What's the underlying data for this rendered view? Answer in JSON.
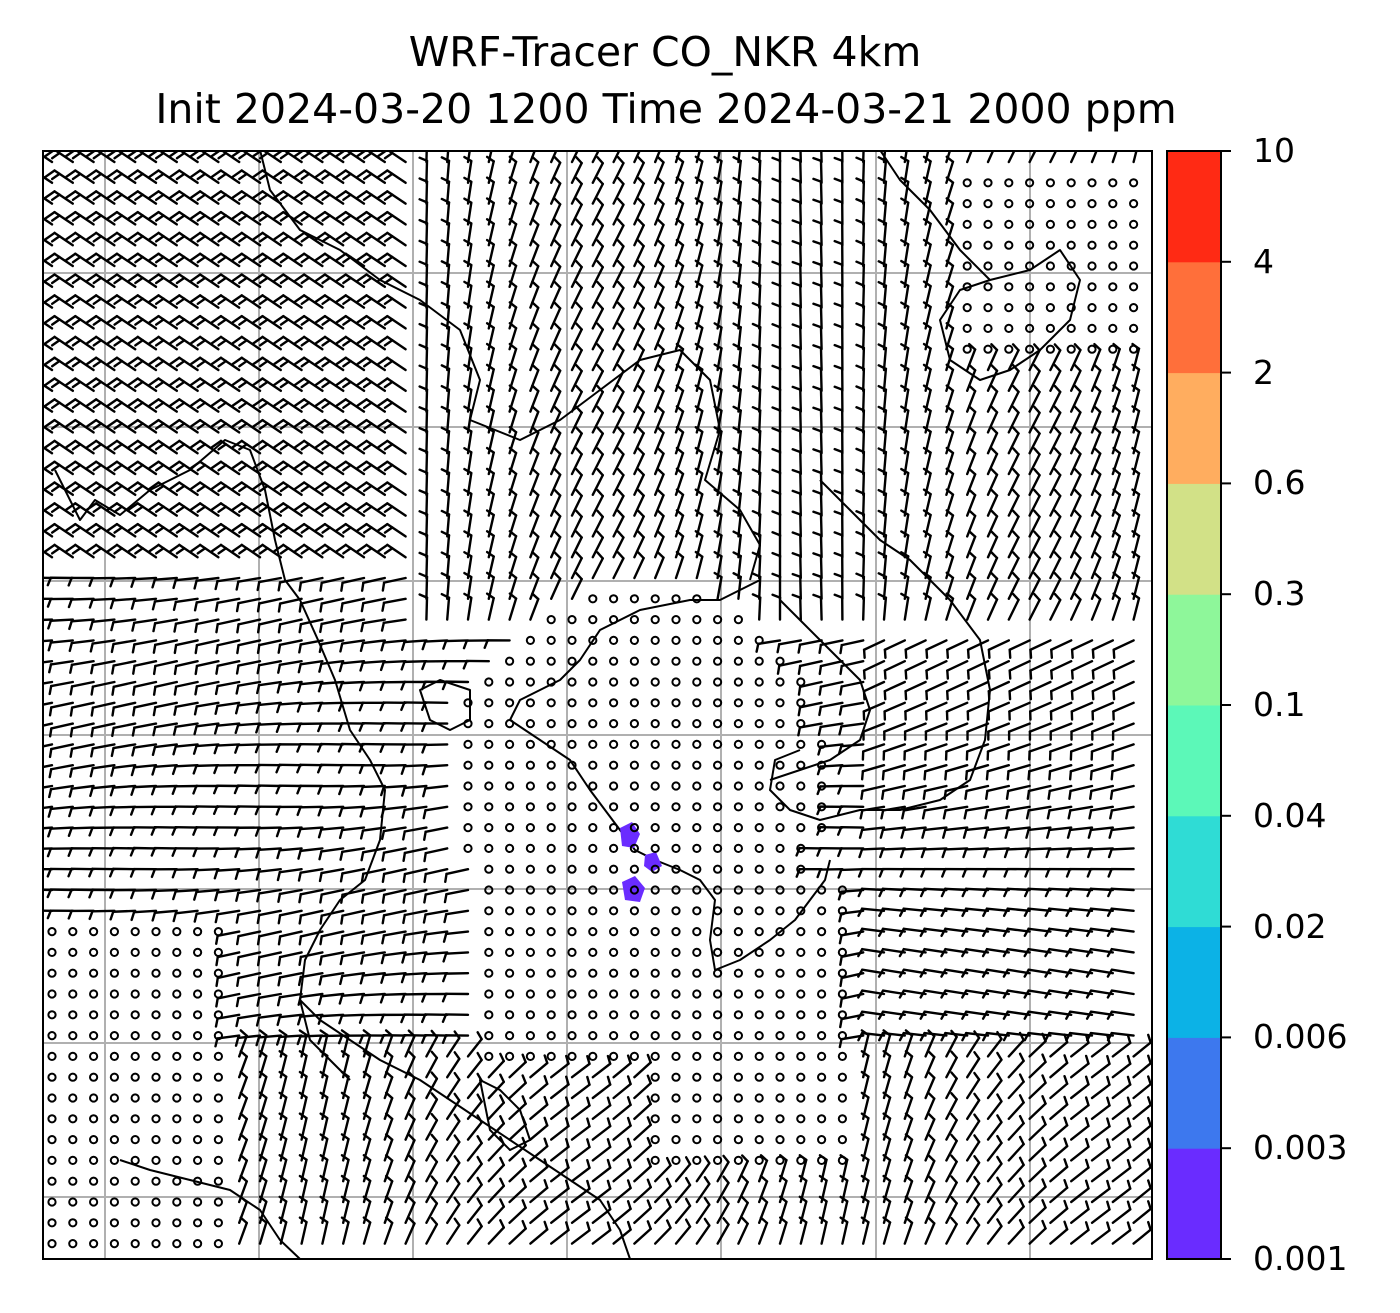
{
  "title": {
    "line1": "WRF-Tracer CO_NKR 4km",
    "line2": "Init 2024-03-20 1200 Time 2024-03-21 2000 ppm"
  },
  "colorbar": {
    "levels": [
      "0.001",
      "0.003",
      "0.006",
      "0.02",
      "0.04",
      "0.1",
      "0.3",
      "0.6",
      "2",
      "4",
      "10"
    ],
    "colors": [
      "#6a2cff",
      "#3d78ee",
      "#0cb2e6",
      "#2fdcd5",
      "#5cf8b8",
      "#8ef79a",
      "#d2e187",
      "#ffad5f",
      "#ff6f3a",
      "#ff2a14"
    ]
  },
  "colors": {
    "coastline": "#000000",
    "gridline": "#b0b0b0",
    "barb": "#000000",
    "tracer_plume": "#6a2cff"
  },
  "map": {
    "gridlines": "on",
    "features": [
      "coastlines",
      "wind-barbs",
      "tracer-concentration-shading"
    ]
  }
}
